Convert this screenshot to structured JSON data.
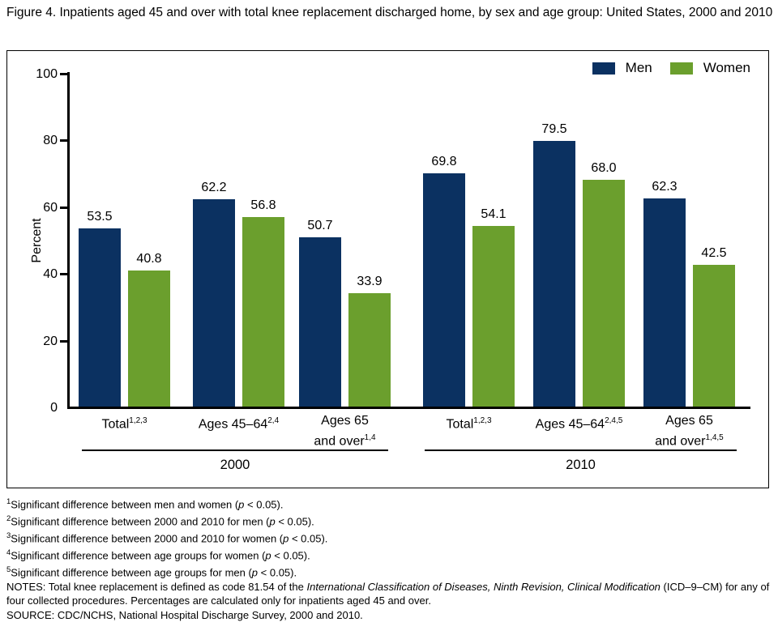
{
  "figure": {
    "title": "Figure 4. Inpatients aged 45 and over with total knee replacement discharged home, by sex and age group: United States, 2000 and 2010"
  },
  "chart_data": {
    "type": "bar",
    "title": "Figure 4. Inpatients aged 45 and over with total knee replacement discharged home, by sex and age group: United States, 2000 and 2010",
    "ylabel": "Percent",
    "xlabel": "",
    "ylim": [
      0,
      100
    ],
    "yticks": [
      0,
      20,
      40,
      60,
      80,
      100
    ],
    "grid": false,
    "legend_position": "top-right",
    "series": [
      {
        "name": "Men",
        "color": "#0b3161"
      },
      {
        "name": "Women",
        "color": "#6b9f2d"
      }
    ],
    "periods": [
      {
        "label": "2000",
        "groups": [
          {
            "label": "Total",
            "sup": "1,2,3",
            "bars": [
              {
                "series": "Men",
                "value": 53.5,
                "label": "53.5"
              },
              {
                "series": "Women",
                "value": 40.8,
                "label": "40.8"
              }
            ]
          },
          {
            "label": "Ages 45–64",
            "sup": "2,4",
            "bars": [
              {
                "series": "Men",
                "value": 62.2,
                "label": "62.2"
              },
              {
                "series": "Women",
                "value": 56.8,
                "label": "56.8"
              }
            ]
          },
          {
            "label": "Ages 65|and over",
            "sup": "1,4",
            "bars": [
              {
                "series": "Men",
                "value": 50.7,
                "label": "50.7"
              },
              {
                "series": "Women",
                "value": 33.9,
                "label": "33.9"
              }
            ]
          }
        ]
      },
      {
        "label": "2010",
        "groups": [
          {
            "label": "Total",
            "sup": "1,2,3",
            "bars": [
              {
                "series": "Men",
                "value": 69.8,
                "label": "69.8"
              },
              {
                "series": "Women",
                "value": 54.1,
                "label": "54.1"
              }
            ]
          },
          {
            "label": "Ages 45–64",
            "sup": "2,4,5",
            "bars": [
              {
                "series": "Men",
                "value": 79.5,
                "label": "79.5"
              },
              {
                "series": "Women",
                "value": 68.0,
                "label": "68.0"
              }
            ]
          },
          {
            "label": "Ages 65|and over",
            "sup": "1,4,5",
            "bars": [
              {
                "series": "Men",
                "value": 62.3,
                "label": "62.3"
              },
              {
                "series": "Women",
                "value": 42.5,
                "label": "42.5"
              }
            ]
          }
        ]
      }
    ]
  },
  "footnotes": [
    {
      "sup": "1",
      "pre": "Significant difference between men and women (",
      "it": "p",
      "post": " < 0.05)."
    },
    {
      "sup": "2",
      "pre": "Significant difference between 2000 and 2010 for men (",
      "it": "p",
      "post": " < 0.05)."
    },
    {
      "sup": "3",
      "pre": "Significant difference between 2000 and 2010 for women (",
      "it": "p",
      "post": " < 0.05)."
    },
    {
      "sup": "4",
      "pre": "Significant difference between age groups for women (",
      "it": "p",
      "post": " < 0.05)."
    },
    {
      "sup": "5",
      "pre": "Significant difference between age groups for men (",
      "it": "p",
      "post": " < 0.05)."
    }
  ],
  "notes": {
    "pre": "NOTES: Total knee replacement is defined as code 81.54 of the ",
    "italic": "International Classification of Diseases, Ninth Revision, Clinical Modification",
    "post": " (ICD–9–CM) for any of four collected procedures. Percentages are calculated only for inpatients aged 45 and over."
  },
  "source": "SOURCE: CDC/NCHS, National Hospital Discharge Survey, 2000 and 2010."
}
